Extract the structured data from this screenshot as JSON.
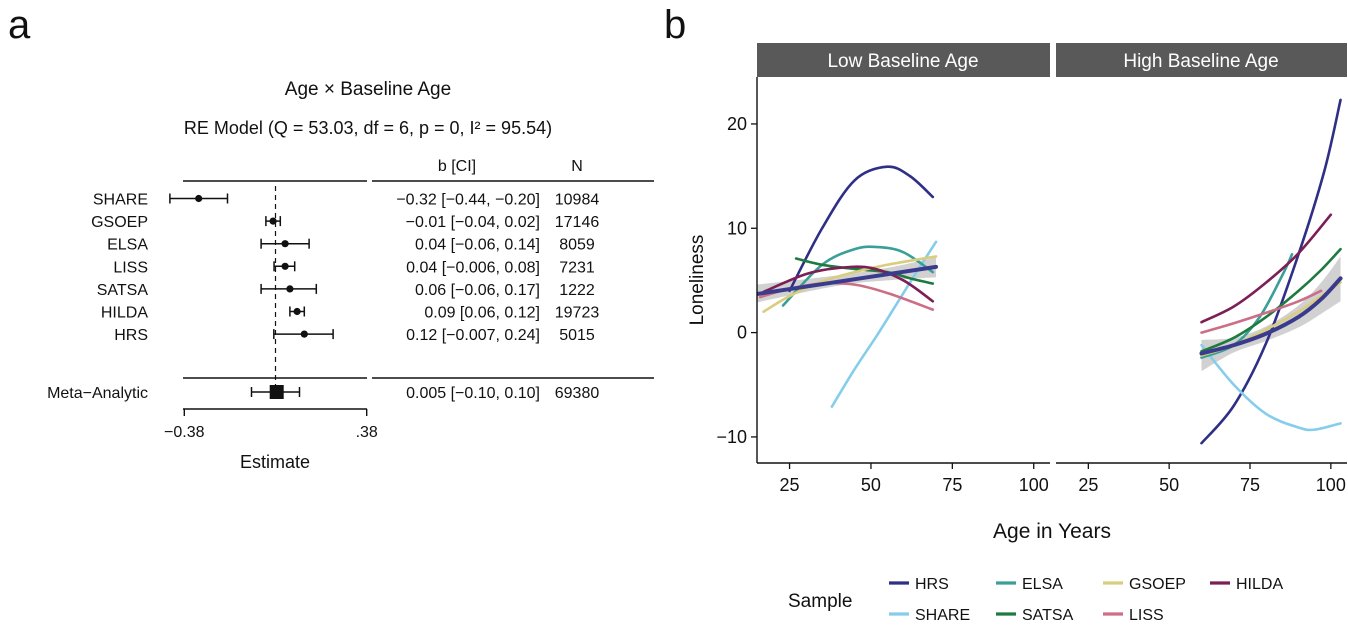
{
  "panel_a": {
    "label": "a",
    "title": "Age × Baseline Age",
    "subtitle": "RE Model (Q = 53.03, df = 6, p = 0, I² = 95.54)",
    "col_ci_header": "b [CI]",
    "col_n_header": "N",
    "xlabel": "Estimate",
    "tick_labels": [
      "−0.38",
      ".38"
    ]
  },
  "panel_b": {
    "label": "b",
    "facets": [
      "Low Baseline Age",
      "High Baseline Age"
    ],
    "xlabel": "Age in Years",
    "ylabel": "Loneliness",
    "legend_title": "Sample"
  },
  "chart_data": [
    {
      "type": "forest",
      "x_range": [
        -0.45,
        0.45
      ],
      "x_ticks": [
        -0.38,
        0.38
      ],
      "reference_line": 0,
      "rows": [
        {
          "label": "SHARE",
          "estimate": -0.32,
          "lo": -0.44,
          "hi": -0.2,
          "ci_text": "−0.32 [−0.44, −0.20]",
          "n": "10984"
        },
        {
          "label": "GSOEP",
          "estimate": -0.01,
          "lo": -0.04,
          "hi": 0.02,
          "ci_text": "−0.01 [−0.04, 0.02]",
          "n": "17146"
        },
        {
          "label": "ELSA",
          "estimate": 0.04,
          "lo": -0.06,
          "hi": 0.14,
          "ci_text": "0.04 [−0.06, 0.14]",
          "n": "8059"
        },
        {
          "label": "LISS",
          "estimate": 0.04,
          "lo": -0.006,
          "hi": 0.08,
          "ci_text": "0.04 [−0.006, 0.08]",
          "n": "7231"
        },
        {
          "label": "SATSA",
          "estimate": 0.06,
          "lo": -0.06,
          "hi": 0.17,
          "ci_text": "0.06 [−0.06, 0.17]",
          "n": "1222"
        },
        {
          "label": "HILDA",
          "estimate": 0.09,
          "lo": 0.06,
          "hi": 0.12,
          "ci_text": "0.09 [0.06, 0.12]",
          "n": "19723"
        },
        {
          "label": "HRS",
          "estimate": 0.12,
          "lo": -0.007,
          "hi": 0.24,
          "ci_text": "0.12 [−0.007, 0.24]",
          "n": "5015"
        }
      ],
      "summary": {
        "label": "Meta−Analytic",
        "estimate": 0.005,
        "lo": -0.1,
        "hi": 0.1,
        "ci_text": "0.005 [−0.10, 0.10]",
        "n": "69380"
      }
    },
    {
      "type": "line",
      "x_range": [
        15,
        105
      ],
      "y_range": [
        -12.5,
        24.5
      ],
      "x_ticks": [
        25,
        50,
        75,
        100
      ],
      "y_ticks": [
        -10,
        0,
        10,
        20
      ],
      "y_tick_labels": [
        "−10",
        "0",
        "10",
        "20"
      ],
      "legend_position": "bottom",
      "series": [
        {
          "name": "HRS",
          "color": "#2f2f86",
          "low": [
            [
              25,
              4.0
            ],
            [
              35,
              10.0
            ],
            [
              45,
              14.6
            ],
            [
              55,
              15.9
            ],
            [
              62,
              15.0
            ],
            [
              69,
              13.0
            ]
          ],
          "high": [
            [
              60,
              -10.6
            ],
            [
              70,
              -7.0
            ],
            [
              80,
              -1.0
            ],
            [
              90,
              7.5
            ],
            [
              98,
              15.5
            ],
            [
              103,
              22.3
            ]
          ]
        },
        {
          "name": "SHARE",
          "color": "#85cdea",
          "low": [
            [
              38,
              -7.1
            ],
            [
              45,
              -3.5
            ],
            [
              52,
              -0.2
            ],
            [
              58,
              2.8
            ],
            [
              64,
              5.8
            ],
            [
              70,
              8.7
            ]
          ],
          "high": [
            [
              60,
              -1.2
            ],
            [
              70,
              -5.0
            ],
            [
              80,
              -7.8
            ],
            [
              90,
              -9.1
            ],
            [
              95,
              -9.3
            ],
            [
              103,
              -8.7
            ]
          ]
        },
        {
          "name": "ELSA",
          "color": "#3a9f98",
          "low": [
            [
              23,
              2.6
            ],
            [
              35,
              6.5
            ],
            [
              45,
              8.0
            ],
            [
              52,
              8.2
            ],
            [
              60,
              7.7
            ],
            [
              69,
              5.8
            ]
          ],
          "high": [
            [
              60,
              -2.4
            ],
            [
              70,
              -1.2
            ],
            [
              78,
              1.5
            ],
            [
              85,
              5.5
            ],
            [
              88,
              7.5
            ]
          ]
        },
        {
          "name": "SATSA",
          "color": "#1f7a40",
          "low": [
            [
              27,
              7.1
            ],
            [
              35,
              6.5
            ],
            [
              45,
              6.1
            ],
            [
              55,
              5.8
            ],
            [
              62,
              5.2
            ],
            [
              69,
              4.7
            ]
          ],
          "high": [
            [
              60,
              -1.8
            ],
            [
              70,
              -0.5
            ],
            [
              80,
              1.5
            ],
            [
              90,
              4.0
            ],
            [
              97,
              6.0
            ],
            [
              103,
              8.0
            ]
          ]
        },
        {
          "name": "GSOEP",
          "color": "#d9cd7e",
          "low": [
            [
              17,
              2.0
            ],
            [
              25,
              3.5
            ],
            [
              35,
              4.9
            ],
            [
              45,
              5.8
            ],
            [
              55,
              6.5
            ],
            [
              70,
              7.3
            ]
          ],
          "high": [
            [
              60,
              -2.2
            ],
            [
              70,
              -1.2
            ],
            [
              80,
              0.3
            ],
            [
              90,
              2.0
            ],
            [
              97,
              3.5
            ],
            [
              103,
              4.8
            ]
          ]
        },
        {
          "name": "HILDA",
          "color": "#7c1f55",
          "low": [
            [
              17,
              3.9
            ],
            [
              30,
              5.6
            ],
            [
              40,
              6.2
            ],
            [
              50,
              6.2
            ],
            [
              60,
              5.0
            ],
            [
              69,
              3.0
            ]
          ],
          "high": [
            [
              60,
              1.0
            ],
            [
              70,
              2.5
            ],
            [
              80,
              4.8
            ],
            [
              90,
              7.6
            ],
            [
              100,
              11.3
            ]
          ]
        },
        {
          "name": "LISS",
          "color": "#cc6f86",
          "low": [
            [
              16,
              3.4
            ],
            [
              25,
              4.2
            ],
            [
              35,
              4.7
            ],
            [
              45,
              4.6
            ],
            [
              55,
              3.8
            ],
            [
              69,
              2.2
            ]
          ],
          "high": [
            [
              60,
              0.0
            ],
            [
              70,
              0.9
            ],
            [
              80,
              1.9
            ],
            [
              90,
              3.0
            ],
            [
              97,
              4.0
            ]
          ]
        }
      ],
      "overall": {
        "color": "#3b3b8e",
        "low": [
          [
            15,
            3.7
          ],
          [
            70,
            6.3
          ]
        ],
        "high": [
          [
            60,
            -2.0
          ],
          [
            70,
            -1.2
          ],
          [
            80,
            -0.1
          ],
          [
            90,
            1.5
          ],
          [
            97,
            3.2
          ],
          [
            103,
            5.2
          ]
        ],
        "band_low": [
          [
            15,
            2.9,
            4.6
          ],
          [
            40,
            4.5,
            5.5
          ],
          [
            55,
            5.0,
            6.2
          ],
          [
            70,
            5.3,
            7.2
          ]
        ],
        "band_high": [
          [
            60,
            -3.7,
            -0.7
          ],
          [
            70,
            -1.9,
            -0.5
          ],
          [
            80,
            -0.8,
            0.6
          ],
          [
            90,
            0.5,
            2.6
          ],
          [
            97,
            1.8,
            4.8
          ],
          [
            103,
            3.0,
            7.3
          ]
        ]
      }
    }
  ]
}
